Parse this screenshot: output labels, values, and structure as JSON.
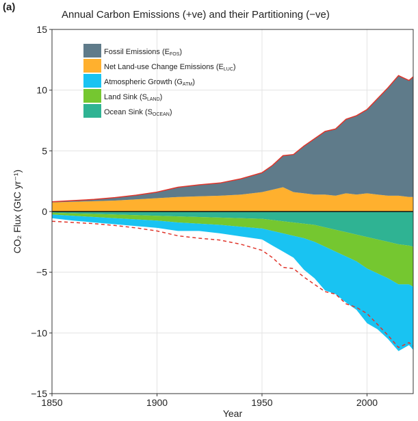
{
  "panel_label": "(a)",
  "chart_data": {
    "type": "area",
    "title": "Annual Carbon Emissions (+ve) and their Partitioning (−ve)",
    "xlabel": "Year",
    "ylabel": "CO₂ Flux (GtC yr⁻¹)",
    "xlim": [
      1850,
      2022
    ],
    "ylim": [
      -15,
      15
    ],
    "xticks": [
      1850,
      1900,
      1950,
      2000
    ],
    "xtick_labels": [
      "1850",
      "1900",
      "1950",
      "2000"
    ],
    "yticks": [
      -15,
      -10,
      -5,
      0,
      5,
      10,
      15
    ],
    "ytick_labels": [
      "−15",
      "−10",
      "−5",
      "0",
      "5",
      "10",
      "15"
    ],
    "grid": true,
    "legend_position": "top-left",
    "x": [
      1850,
      1860,
      1870,
      1880,
      1890,
      1900,
      1910,
      1920,
      1930,
      1940,
      1950,
      1955,
      1960,
      1965,
      1970,
      1975,
      1980,
      1985,
      1990,
      1995,
      2000,
      2005,
      2010,
      2015,
      2020,
      2022
    ],
    "series": [
      {
        "name": "Fossil Emissions (E",
        "sub": "FOS",
        "color": "#5f7b8a",
        "side": "positive",
        "values": [
          0.05,
          0.1,
          0.15,
          0.25,
          0.35,
          0.5,
          0.8,
          0.95,
          1.05,
          1.3,
          1.6,
          2.0,
          2.6,
          3.1,
          3.9,
          4.6,
          5.2,
          5.5,
          6.1,
          6.5,
          6.9,
          7.9,
          8.9,
          9.9,
          9.6,
          9.9
        ]
      },
      {
        "name": "Net Land-use Change Emissions (E",
        "sub": "LUC",
        "color": "#ffb02e",
        "side": "positive",
        "values": [
          0.75,
          0.8,
          0.85,
          0.9,
          1.0,
          1.1,
          1.2,
          1.25,
          1.3,
          1.4,
          1.6,
          1.8,
          2.0,
          1.6,
          1.5,
          1.4,
          1.4,
          1.3,
          1.5,
          1.4,
          1.5,
          1.4,
          1.3,
          1.3,
          1.2,
          1.2
        ]
      },
      {
        "name": "Atmospheric Growth (G",
        "sub": "ATM",
        "color": "#19c3f2",
        "side": "negative",
        "values": [
          0.3,
          0.4,
          0.45,
          0.5,
          0.55,
          0.6,
          0.7,
          0.6,
          0.7,
          0.8,
          0.9,
          1.2,
          1.5,
          1.8,
          2.6,
          3.0,
          3.6,
          3.5,
          3.8,
          4.0,
          4.5,
          4.6,
          5.0,
          5.5,
          5.0,
          5.2
        ]
      },
      {
        "name": "Land Sink (S",
        "sub": "LAND",
        "color": "#75c730",
        "side": "negative",
        "values": [
          0.15,
          0.2,
          0.25,
          0.3,
          0.35,
          0.4,
          0.5,
          0.55,
          0.6,
          0.7,
          0.8,
          0.9,
          1.0,
          1.1,
          1.2,
          1.4,
          1.6,
          1.8,
          2.0,
          2.2,
          2.6,
          2.8,
          3.0,
          3.3,
          3.2,
          3.3
        ]
      },
      {
        "name": "Ocean Sink (S",
        "sub": "OCEAN",
        "color": "#2fb393",
        "side": "negative",
        "values": [
          0.1,
          0.15,
          0.2,
          0.25,
          0.3,
          0.35,
          0.4,
          0.45,
          0.5,
          0.55,
          0.6,
          0.7,
          0.8,
          0.9,
          1.0,
          1.1,
          1.3,
          1.5,
          1.7,
          1.9,
          2.1,
          2.3,
          2.5,
          2.7,
          2.8,
          2.9
        ]
      }
    ],
    "outline_color": "#e0342a"
  }
}
